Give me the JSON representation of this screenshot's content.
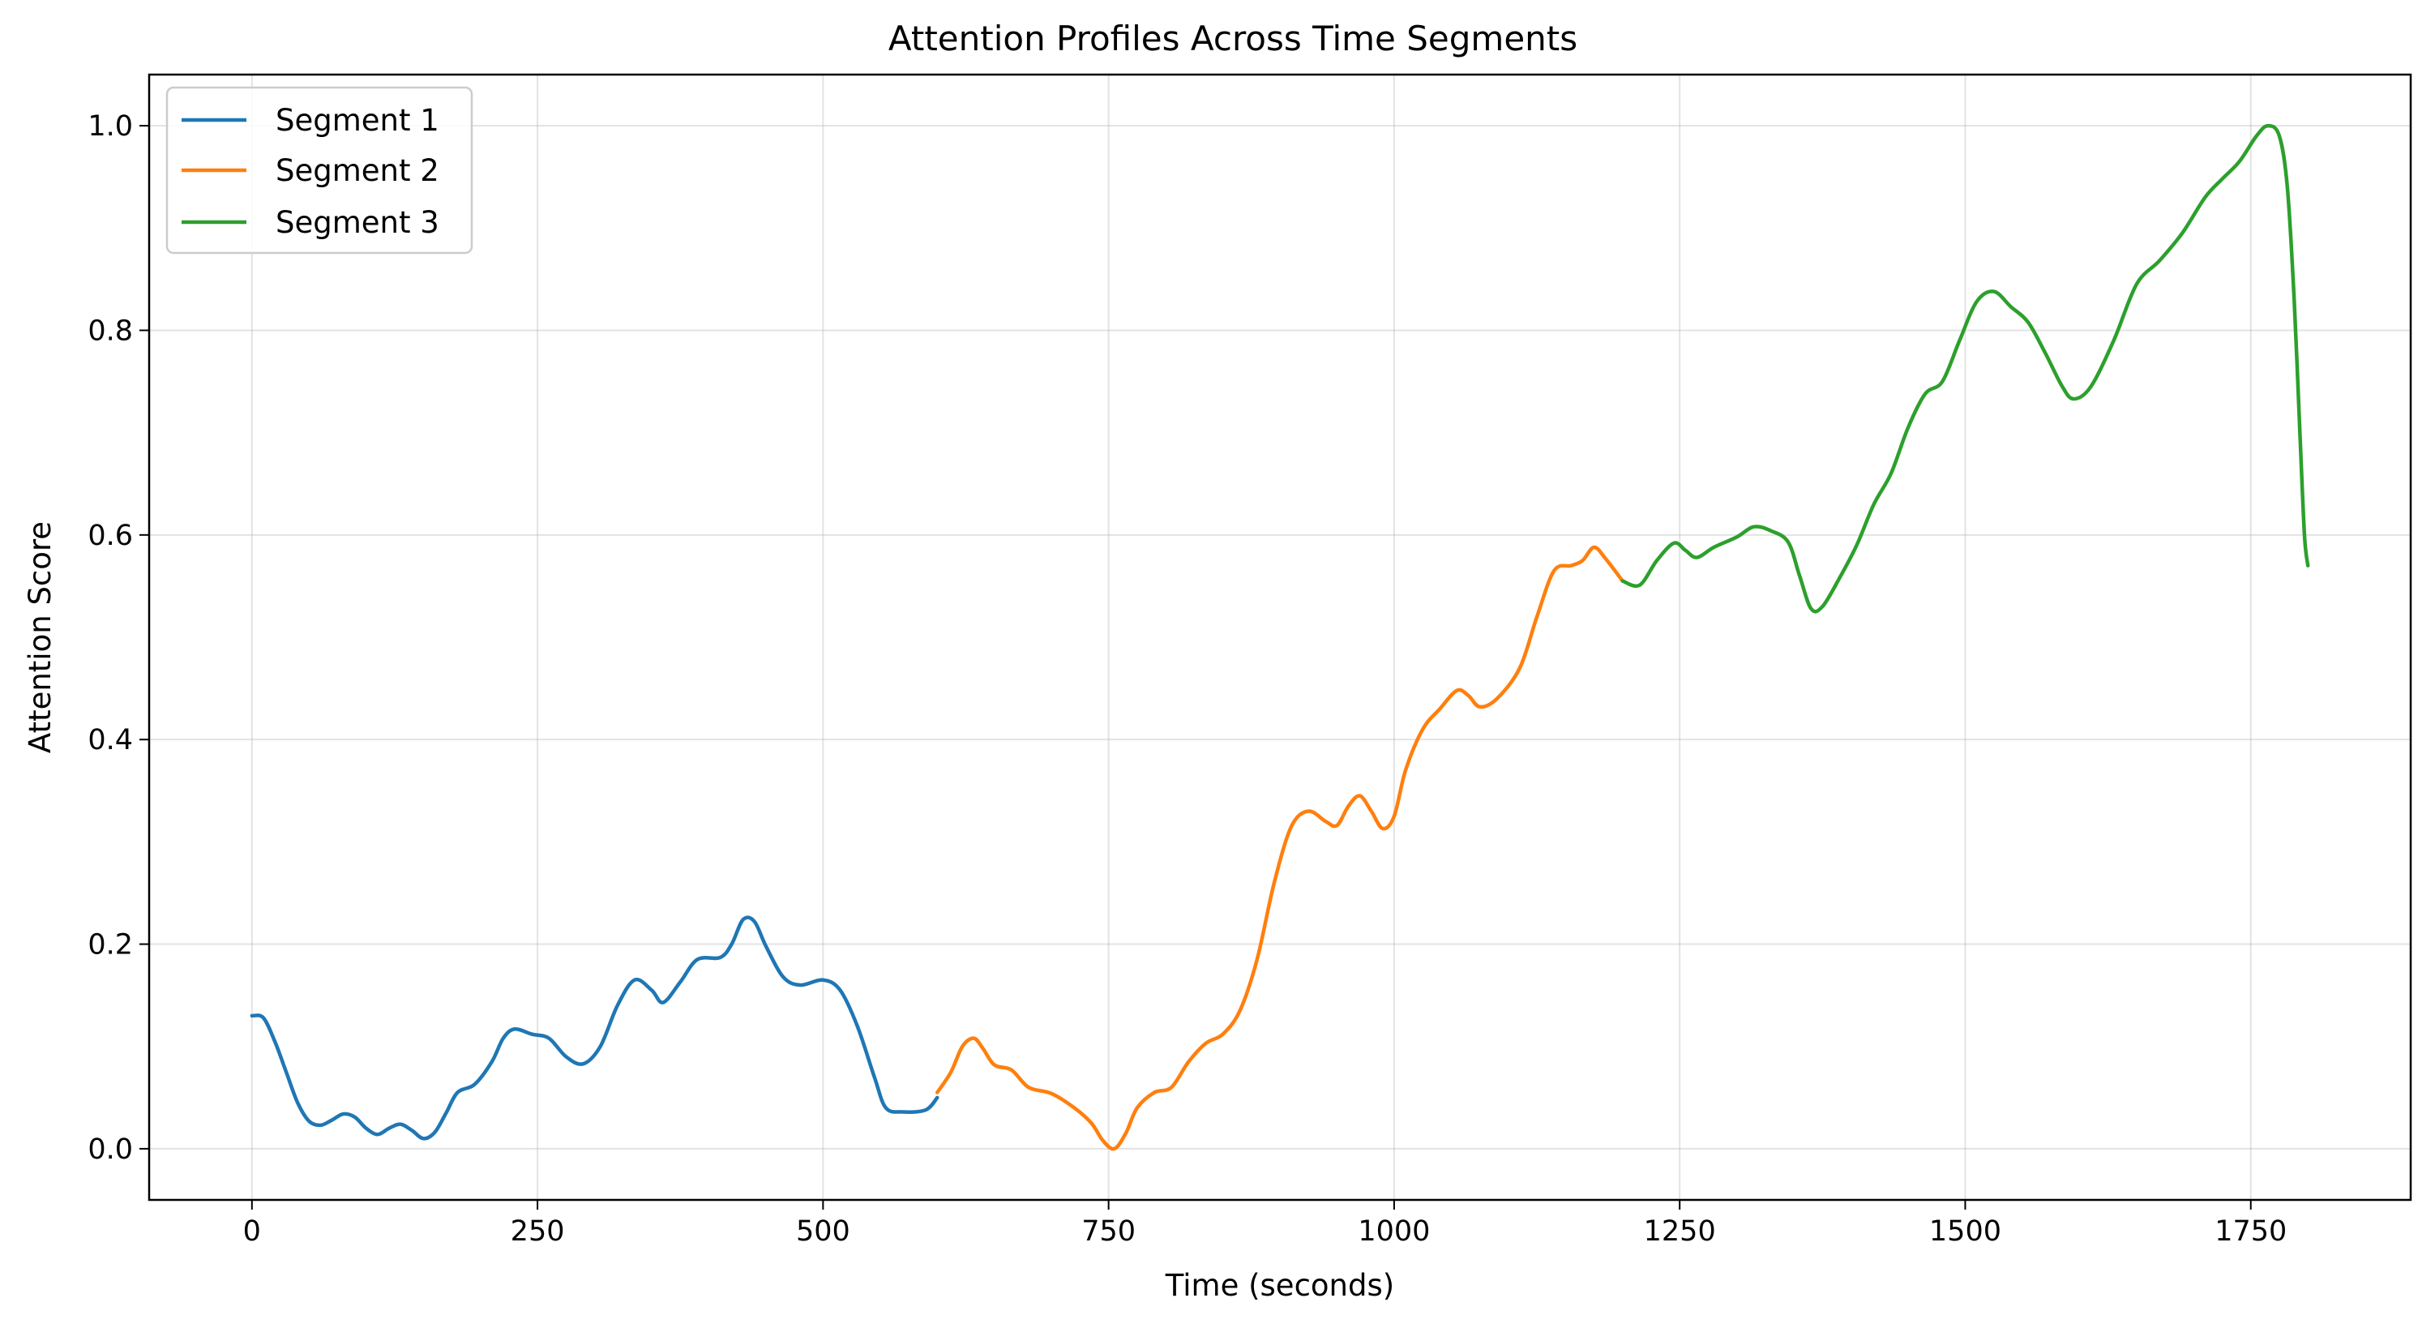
{
  "chart_data": {
    "type": "line",
    "title": "Attention Profiles Across Time Segments",
    "xlabel": "Time (seconds)",
    "ylabel": "Attention Score",
    "xlim": [
      -90,
      1890
    ],
    "ylim": [
      -0.05,
      1.05
    ],
    "x_ticks": [
      0,
      250,
      500,
      750,
      1000,
      1250,
      1500,
      1750
    ],
    "y_ticks": [
      0.0,
      0.2,
      0.4,
      0.6,
      0.8,
      1.0
    ],
    "y_tick_labels": [
      "0.0",
      "0.2",
      "0.4",
      "0.6",
      "0.8",
      "1.0"
    ],
    "grid": true,
    "legend_position": "top-left",
    "series": [
      {
        "name": "Segment 1",
        "color": "#1f77b4",
        "points": [
          [
            0,
            0.13
          ],
          [
            10,
            0.128
          ],
          [
            20,
            0.105
          ],
          [
            30,
            0.075
          ],
          [
            40,
            0.045
          ],
          [
            50,
            0.027
          ],
          [
            60,
            0.023
          ],
          [
            70,
            0.028
          ],
          [
            80,
            0.034
          ],
          [
            90,
            0.031
          ],
          [
            100,
            0.02
          ],
          [
            110,
            0.014
          ],
          [
            120,
            0.02
          ],
          [
            130,
            0.024
          ],
          [
            140,
            0.018
          ],
          [
            150,
            0.01
          ],
          [
            160,
            0.016
          ],
          [
            170,
            0.035
          ],
          [
            180,
            0.055
          ],
          [
            195,
            0.063
          ],
          [
            210,
            0.085
          ],
          [
            220,
            0.108
          ],
          [
            230,
            0.117
          ],
          [
            245,
            0.112
          ],
          [
            260,
            0.108
          ],
          [
            275,
            0.09
          ],
          [
            290,
            0.083
          ],
          [
            305,
            0.1
          ],
          [
            320,
            0.14
          ],
          [
            335,
            0.165
          ],
          [
            350,
            0.155
          ],
          [
            360,
            0.143
          ],
          [
            375,
            0.163
          ],
          [
            390,
            0.185
          ],
          [
            410,
            0.187
          ],
          [
            420,
            0.2
          ],
          [
            430,
            0.224
          ],
          [
            440,
            0.222
          ],
          [
            450,
            0.198
          ],
          [
            465,
            0.168
          ],
          [
            480,
            0.16
          ],
          [
            500,
            0.165
          ],
          [
            515,
            0.155
          ],
          [
            530,
            0.12
          ],
          [
            545,
            0.07
          ],
          [
            555,
            0.04
          ],
          [
            570,
            0.036
          ],
          [
            590,
            0.038
          ],
          [
            600,
            0.05
          ]
        ]
      },
      {
        "name": "Segment 2",
        "color": "#ff7f0e",
        "points": [
          [
            600,
            0.055
          ],
          [
            612,
            0.075
          ],
          [
            622,
            0.1
          ],
          [
            632,
            0.108
          ],
          [
            640,
            0.098
          ],
          [
            650,
            0.082
          ],
          [
            665,
            0.077
          ],
          [
            680,
            0.06
          ],
          [
            700,
            0.054
          ],
          [
            720,
            0.04
          ],
          [
            735,
            0.025
          ],
          [
            745,
            0.008
          ],
          [
            755,
            0.0
          ],
          [
            765,
            0.015
          ],
          [
            775,
            0.04
          ],
          [
            790,
            0.055
          ],
          [
            805,
            0.06
          ],
          [
            820,
            0.085
          ],
          [
            835,
            0.103
          ],
          [
            850,
            0.112
          ],
          [
            865,
            0.135
          ],
          [
            880,
            0.185
          ],
          [
            895,
            0.26
          ],
          [
            910,
            0.315
          ],
          [
            925,
            0.33
          ],
          [
            940,
            0.32
          ],
          [
            950,
            0.316
          ],
          [
            960,
            0.335
          ],
          [
            970,
            0.345
          ],
          [
            980,
            0.33
          ],
          [
            990,
            0.313
          ],
          [
            1000,
            0.325
          ],
          [
            1010,
            0.37
          ],
          [
            1025,
            0.41
          ],
          [
            1040,
            0.43
          ],
          [
            1055,
            0.448
          ],
          [
            1065,
            0.443
          ],
          [
            1075,
            0.432
          ],
          [
            1090,
            0.44
          ],
          [
            1110,
            0.47
          ],
          [
            1125,
            0.52
          ],
          [
            1140,
            0.565
          ],
          [
            1155,
            0.57
          ],
          [
            1165,
            0.575
          ],
          [
            1175,
            0.588
          ],
          [
            1185,
            0.577
          ],
          [
            1200,
            0.555
          ]
        ]
      },
      {
        "name": "Segment 3",
        "color": "#2ca02c",
        "points": [
          [
            1200,
            0.555
          ],
          [
            1215,
            0.551
          ],
          [
            1230,
            0.575
          ],
          [
            1245,
            0.592
          ],
          [
            1255,
            0.585
          ],
          [
            1265,
            0.578
          ],
          [
            1280,
            0.588
          ],
          [
            1300,
            0.598
          ],
          [
            1315,
            0.608
          ],
          [
            1330,
            0.604
          ],
          [
            1345,
            0.593
          ],
          [
            1355,
            0.56
          ],
          [
            1365,
            0.528
          ],
          [
            1375,
            0.53
          ],
          [
            1390,
            0.558
          ],
          [
            1405,
            0.59
          ],
          [
            1420,
            0.63
          ],
          [
            1435,
            0.66
          ],
          [
            1450,
            0.705
          ],
          [
            1465,
            0.738
          ],
          [
            1480,
            0.75
          ],
          [
            1495,
            0.79
          ],
          [
            1510,
            0.828
          ],
          [
            1525,
            0.838
          ],
          [
            1540,
            0.823
          ],
          [
            1555,
            0.808
          ],
          [
            1570,
            0.778
          ],
          [
            1585,
            0.745
          ],
          [
            1595,
            0.733
          ],
          [
            1610,
            0.745
          ],
          [
            1630,
            0.79
          ],
          [
            1650,
            0.845
          ],
          [
            1670,
            0.868
          ],
          [
            1690,
            0.895
          ],
          [
            1710,
            0.93
          ],
          [
            1725,
            0.948
          ],
          [
            1740,
            0.965
          ],
          [
            1755,
            0.99
          ],
          [
            1765,
            1.0
          ],
          [
            1775,
            0.99
          ],
          [
            1782,
            0.94
          ],
          [
            1788,
            0.83
          ],
          [
            1793,
            0.7
          ],
          [
            1797,
            0.6
          ],
          [
            1800,
            0.57
          ]
        ]
      }
    ]
  }
}
